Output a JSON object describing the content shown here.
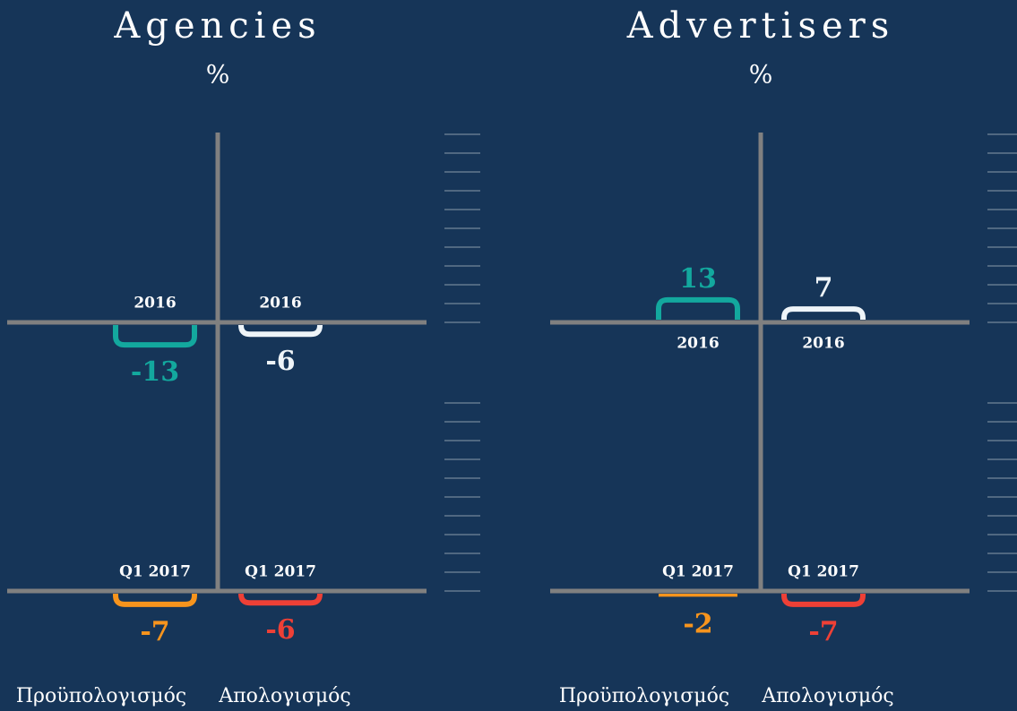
{
  "chart_data": [
    {
      "type": "bar",
      "title": "Agencies",
      "subtitle": "%",
      "categories": [
        "Προϋπολογισμός",
        "Απολογισμός"
      ],
      "series": [
        {
          "name": "2016",
          "colors": [
            "#13a89e",
            "#eef4f8"
          ],
          "values": [
            -13,
            -6
          ]
        },
        {
          "name": "Q1 2017",
          "colors": [
            "#f7941d",
            "#ee4036"
          ],
          "values": [
            -7,
            -6
          ]
        }
      ]
    },
    {
      "type": "bar",
      "title": "Advertisers",
      "subtitle": "%",
      "categories": [
        "Προϋπολογισμός",
        "Απολογισμός"
      ],
      "series": [
        {
          "name": "2016",
          "colors": [
            "#13a89e",
            "#eef4f8"
          ],
          "values": [
            13,
            7
          ]
        },
        {
          "name": "Q1 2017",
          "colors": [
            "#f7941d",
            "#ee4036"
          ],
          "values": [
            -2,
            -7
          ]
        }
      ]
    }
  ]
}
